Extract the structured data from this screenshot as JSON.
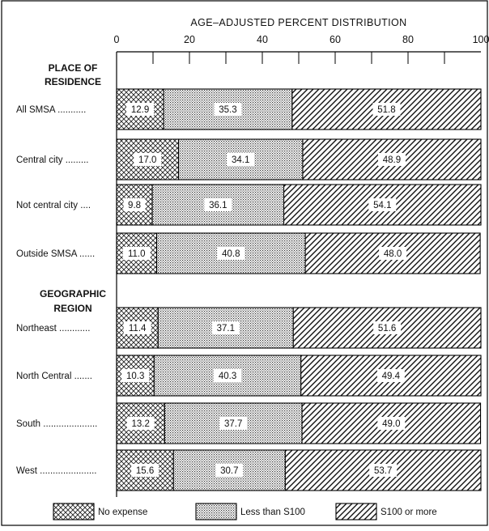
{
  "chart_data": {
    "type": "bar",
    "stacked": true,
    "orientation": "horizontal",
    "title": "AGE–ADJUSTED PERCENT DISTRIBUTION",
    "xlim": [
      0,
      100
    ],
    "xticks": [
      "0",
      "20",
      "40",
      "60",
      "80",
      "100"
    ],
    "groups": [
      {
        "label_lines": [
          "PLACE OF",
          "RESIDENCE"
        ],
        "rows": [
          0,
          1,
          2,
          3
        ]
      },
      {
        "label_lines": [
          "GEOGRAPHIC",
          "REGION"
        ],
        "rows": [
          4,
          5,
          6,
          7
        ]
      }
    ],
    "categories": [
      "All SMSA ...........",
      "Central city .........",
      "Not central city ....",
      "Outside SMSA ......",
      "Northeast ............",
      "North Central .......",
      "South .....................",
      "West ......................"
    ],
    "series": [
      {
        "name": "No expense",
        "pattern": "crosshatch",
        "values": [
          12.9,
          17.0,
          9.8,
          11.0,
          11.4,
          10.3,
          13.2,
          15.6
        ],
        "labels": [
          "12.9",
          "17.0",
          "9.8",
          "11.0",
          "11.4",
          "10.3",
          "13.2",
          "15.6"
        ]
      },
      {
        "name": "Less than S100",
        "pattern": "dots",
        "values": [
          35.3,
          34.1,
          36.1,
          40.8,
          37.1,
          40.3,
          37.7,
          30.7
        ],
        "labels": [
          "35.3",
          "34.1",
          "36.1",
          "40.8",
          "37.1",
          "40.3",
          "37.7",
          "30.7"
        ]
      },
      {
        "name": "S100 or more",
        "pattern": "diagonal",
        "values": [
          51.8,
          48.9,
          54.1,
          48.0,
          51.6,
          49.4,
          49.0,
          53.7
        ],
        "labels": [
          "51.8",
          "48.9",
          "54.1",
          "48.0",
          "51.6",
          "49.4",
          "49.0",
          "53.7"
        ]
      }
    ],
    "legend_position": "bottom",
    "grid": false
  }
}
